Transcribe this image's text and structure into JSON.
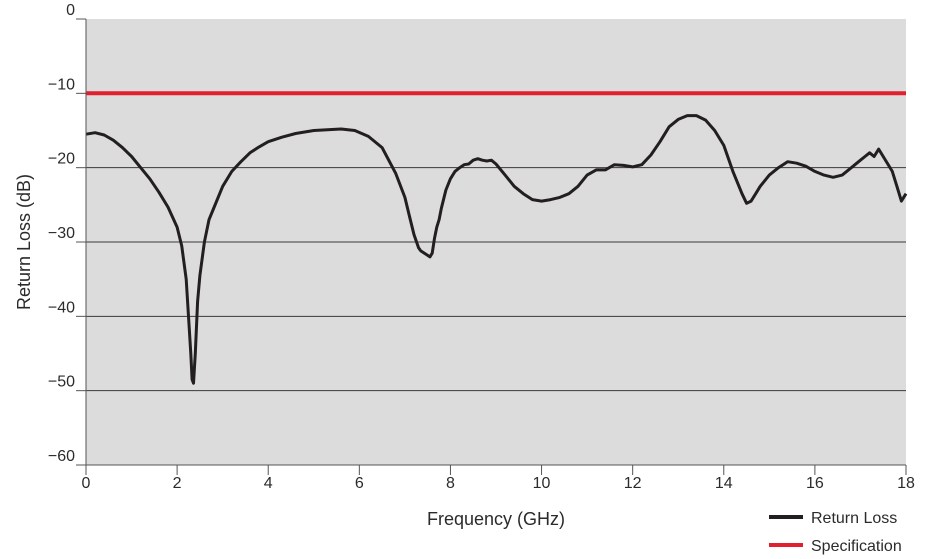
{
  "chart_data": {
    "type": "line",
    "xlabel": "Frequency (GHz)",
    "ylabel": "Return Loss (dB)",
    "xlim": [
      0,
      18
    ],
    "ylim": [
      -60,
      0
    ],
    "x_ticks": [
      0,
      2,
      4,
      6,
      8,
      10,
      12,
      14,
      16,
      18
    ],
    "x_tick_labels": [
      "0",
      "2",
      "4",
      "6",
      "8",
      "10",
      "12",
      "14",
      "16",
      "18"
    ],
    "y_ticks": [
      0,
      -10,
      -20,
      -30,
      -40,
      -50,
      -60
    ],
    "y_tick_labels": [
      "0",
      "−10",
      "−20",
      "−30",
      "−40",
      "−50",
      "−60"
    ],
    "grid": "horizontal",
    "plot_background": "#dcdcdc",
    "legend_position": "bottom-right",
    "series": [
      {
        "name": "Return Loss",
        "color": "#231f20",
        "x": [
          0,
          0.2,
          0.4,
          0.6,
          0.8,
          1.0,
          1.2,
          1.4,
          1.6,
          1.8,
          2.0,
          2.1,
          2.2,
          2.25,
          2.3,
          2.33,
          2.36,
          2.4,
          2.45,
          2.5,
          2.6,
          2.7,
          2.8,
          3.0,
          3.2,
          3.4,
          3.6,
          3.8,
          4.0,
          4.3,
          4.6,
          5.0,
          5.3,
          5.6,
          5.9,
          6.2,
          6.5,
          6.8,
          7.0,
          7.1,
          7.2,
          7.3,
          7.35,
          7.4,
          7.45,
          7.5,
          7.55,
          7.6,
          7.65,
          7.7,
          7.75,
          7.8,
          7.9,
          8.0,
          8.1,
          8.2,
          8.3,
          8.4,
          8.5,
          8.6,
          8.7,
          8.8,
          8.9,
          9.0,
          9.2,
          9.4,
          9.6,
          9.8,
          10.0,
          10.2,
          10.4,
          10.6,
          10.8,
          11.0,
          11.2,
          11.4,
          11.6,
          11.8,
          12.0,
          12.2,
          12.4,
          12.6,
          12.8,
          13.0,
          13.2,
          13.4,
          13.6,
          13.8,
          14.0,
          14.2,
          14.4,
          14.5,
          14.6,
          14.7,
          14.8,
          15.0,
          15.2,
          15.4,
          15.6,
          15.8,
          16.0,
          16.2,
          16.4,
          16.6,
          16.8,
          17.0,
          17.1,
          17.2,
          17.3,
          17.4,
          17.5,
          17.6,
          17.7,
          17.8,
          17.9,
          18.0
        ],
        "y": [
          -15.5,
          -15.3,
          -15.6,
          -16.3,
          -17.3,
          -18.5,
          -20,
          -21.5,
          -23.3,
          -25.3,
          -28,
          -30.5,
          -35,
          -40,
          -45,
          -48.5,
          -49,
          -45,
          -38,
          -34.5,
          -30,
          -27,
          -25.5,
          -22.5,
          -20.5,
          -19.2,
          -18,
          -17.2,
          -16.5,
          -15.9,
          -15.4,
          -15,
          -14.9,
          -14.8,
          -15,
          -15.8,
          -17.3,
          -20.8,
          -24,
          -26.5,
          -29,
          -30.8,
          -31.2,
          -31.4,
          -31.6,
          -31.8,
          -32,
          -31.5,
          -29.5,
          -28,
          -27,
          -25.5,
          -23,
          -21.5,
          -20.5,
          -20,
          -19.6,
          -19.5,
          -19,
          -18.8,
          -19,
          -19.1,
          -19,
          -19.5,
          -21,
          -22.5,
          -23.5,
          -24.3,
          -24.5,
          -24.3,
          -24,
          -23.5,
          -22.5,
          -21,
          -20.3,
          -20.3,
          -19.6,
          -19.7,
          -19.9,
          -19.6,
          -18.3,
          -16.5,
          -14.5,
          -13.5,
          -13,
          -13,
          -13.6,
          -15,
          -17,
          -20.5,
          -23.5,
          -24.8,
          -24.5,
          -23.5,
          -22.5,
          -21,
          -20,
          -19.2,
          -19.4,
          -19.8,
          -20.5,
          -21,
          -21.3,
          -21,
          -20,
          -19,
          -18.5,
          -18,
          -18.5,
          -17.5,
          -18.5,
          -19.5,
          -20.5,
          -22.5,
          -24.5,
          -23.5
        ]
      },
      {
        "name": "Specification",
        "color": "#e0202e",
        "x": [
          0,
          18
        ],
        "y": [
          -10,
          -10
        ]
      }
    ]
  }
}
